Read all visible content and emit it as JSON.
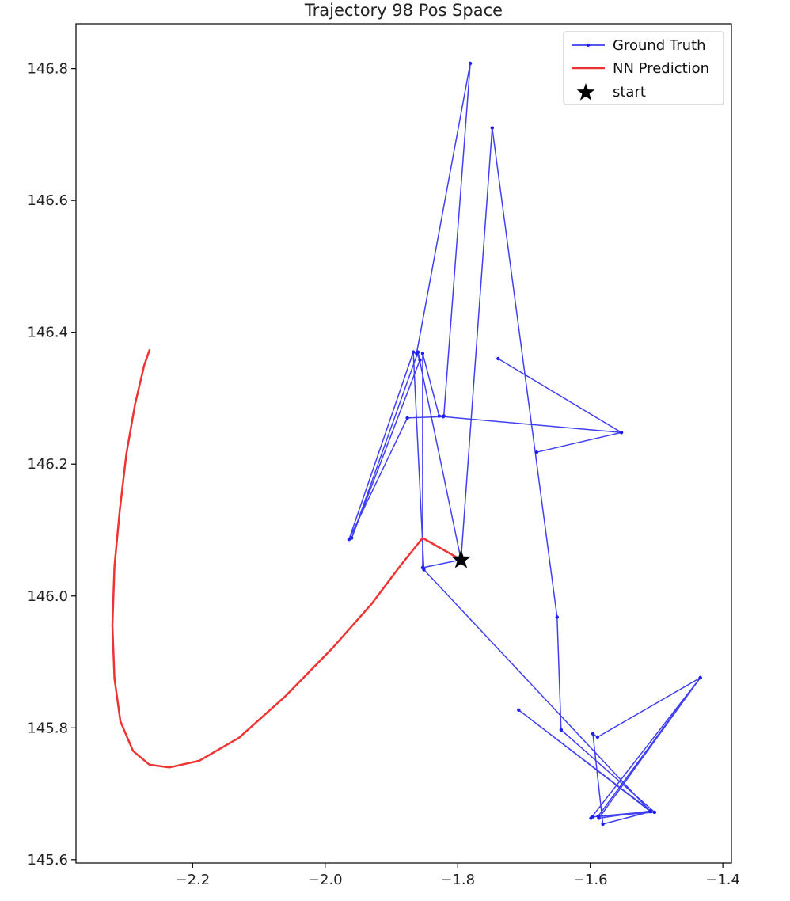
{
  "chart_data": {
    "type": "line",
    "title": "Trajectory 98 Pos Space",
    "xlabel": "",
    "ylabel": "",
    "xlim": [
      -2.376,
      -1.387
    ],
    "ylim": [
      145.595,
      146.868
    ],
    "xticks": [
      -2.2,
      -2.0,
      -1.8,
      -1.6,
      -1.4
    ],
    "xtick_labels": [
      "−2.2",
      "−2.0",
      "−1.8",
      "−1.6",
      "−1.4"
    ],
    "yticks": [
      145.6,
      145.8,
      146.0,
      146.2,
      146.4,
      146.6,
      146.8
    ],
    "ytick_labels": [
      "145.6",
      "145.8",
      "146.0",
      "146.2",
      "146.4",
      "146.6",
      "146.8"
    ],
    "grid": false,
    "legend_position": "top-right",
    "series": [
      {
        "name": "Ground Truth",
        "color": "#1f1ff0",
        "marker": "dot",
        "x": [
          -1.795,
          -1.853,
          -1.853,
          -1.828,
          -1.821,
          -1.781,
          -1.862,
          -1.857,
          -1.96,
          -1.86,
          -1.795,
          -1.748,
          -1.65,
          -1.644,
          -1.503,
          -1.596,
          -1.599,
          -1.434,
          -1.588,
          -1.509,
          -1.581,
          -1.596,
          -1.589,
          -1.434,
          -1.587,
          -1.509,
          -1.708,
          -1.509,
          -1.851,
          -1.867,
          -1.964,
          -1.876,
          -1.822,
          -1.553,
          -1.681,
          -1.553,
          -1.739
        ],
        "y": [
          146.055,
          146.043,
          146.368,
          146.273,
          146.273,
          146.808,
          146.368,
          146.358,
          146.088,
          146.37,
          146.055,
          146.71,
          145.968,
          145.797,
          145.672,
          145.665,
          145.663,
          145.876,
          145.666,
          145.673,
          145.654,
          145.791,
          145.786,
          145.876,
          145.663,
          145.674,
          145.827,
          145.673,
          146.04,
          146.37,
          146.086,
          146.27,
          146.272,
          146.248,
          146.218,
          146.248,
          146.36
        ]
      },
      {
        "name": "NN Prediction",
        "color": "#ee3333",
        "marker": "none",
        "x": [
          -1.795,
          -1.853,
          -1.885,
          -1.93,
          -1.99,
          -2.06,
          -2.13,
          -2.19,
          -2.235,
          -2.265,
          -2.29,
          -2.309,
          -2.318,
          -2.321,
          -2.318,
          -2.31,
          -2.3,
          -2.287,
          -2.273,
          -2.265
        ],
        "y": [
          146.055,
          146.088,
          146.048,
          145.988,
          145.92,
          145.848,
          145.785,
          145.75,
          145.74,
          145.744,
          145.765,
          145.81,
          145.875,
          145.955,
          146.045,
          146.13,
          146.215,
          146.29,
          146.35,
          146.373
        ]
      },
      {
        "name": "start",
        "color": "#000000",
        "marker": "star",
        "x": [
          -1.795
        ],
        "y": [
          146.055
        ]
      }
    ]
  }
}
